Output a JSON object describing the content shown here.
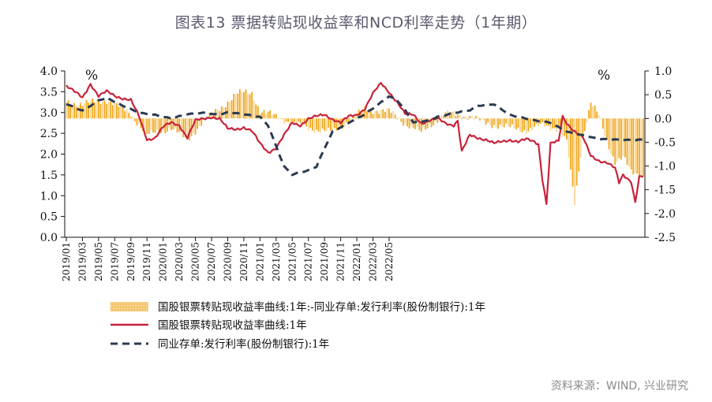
{
  "title": "图表13 票据转贴现收益率和NCD利率走势（1年期）",
  "source": "资料来源：WIND, 兴业研究",
  "colors": {
    "bar": "#F0A71E",
    "bar_light": "#F7D79A",
    "line": "#C8223A",
    "dash": "#2C3A52"
  },
  "chart_data": {
    "type": "line",
    "x_ticks": [
      "2019/01",
      "2019/03",
      "2019/05",
      "2019/07",
      "2019/09",
      "2019/11",
      "2020/01",
      "2020/03",
      "2020/05",
      "2020/07",
      "2020/09",
      "2020/11",
      "2021/01",
      "2021/03",
      "2021/05",
      "2021/07",
      "2021/09",
      "2021/11",
      "2022/01",
      "2022/03",
      "2022/05"
    ],
    "y_left": {
      "unit": "%",
      "ticks": [
        "4.0",
        "3.5",
        "3.0",
        "2.5",
        "2.0",
        "1.5",
        "1.0",
        "0.5",
        "0.0"
      ],
      "ylim": [
        0,
        4
      ]
    },
    "y_right": {
      "unit": "%",
      "ticks": [
        "1.0",
        "0.5",
        "0.0",
        "-0.5",
        "-1.0",
        "-1.5",
        "-2.0",
        "-2.5"
      ],
      "ylim": [
        -2.5,
        1.0
      ]
    },
    "series": [
      {
        "name": "国股银票转贴现收益率曲线:1年:-同业存单:发行利率(股份制银行):1年",
        "type": "bar",
        "axis": "right",
        "keyframes": [
          [
            0,
            0.35
          ],
          [
            2,
            0.3
          ],
          [
            5,
            0.4
          ],
          [
            8,
            0.1
          ],
          [
            10,
            -0.35
          ],
          [
            11,
            -0.3
          ],
          [
            13,
            -0.2
          ],
          [
            15,
            -0.45
          ],
          [
            17,
            -0.05
          ],
          [
            20,
            0.35
          ],
          [
            21,
            0.5
          ],
          [
            22,
            0.55
          ],
          [
            23,
            0.55
          ],
          [
            24,
            0.15
          ],
          [
            26,
            0.05
          ],
          [
            28,
            -0.1
          ],
          [
            30,
            -0.2
          ],
          [
            33,
            -0.3
          ],
          [
            35,
            -0.05
          ],
          [
            37,
            0.2
          ],
          [
            40,
            0.15
          ],
          [
            42,
            -0.1
          ],
          [
            44,
            -0.3
          ],
          [
            45,
            -0.15
          ],
          [
            47,
            0.1
          ],
          [
            50,
            0.05
          ],
          [
            52,
            -0.1
          ],
          [
            55,
            -0.2
          ],
          [
            57,
            -0.25
          ],
          [
            59,
            -0.15
          ],
          [
            61,
            -0.2
          ],
          [
            62,
            -0.5
          ],
          [
            63,
            -1.8
          ],
          [
            64,
            -0.4
          ],
          [
            65,
            0.35
          ],
          [
            66,
            0.05
          ],
          [
            67,
            -0.5
          ],
          [
            68,
            -0.9
          ],
          [
            69,
            -0.8
          ],
          [
            70,
            -1.15
          ],
          [
            71,
            -1.2
          ]
        ]
      },
      {
        "name": "国股银票转贴现收益率曲线:1年",
        "type": "line",
        "axis": "left",
        "keyframes": [
          [
            0,
            3.65
          ],
          [
            1,
            3.5
          ],
          [
            2,
            3.35
          ],
          [
            3,
            3.7
          ],
          [
            4,
            3.4
          ],
          [
            5,
            3.5
          ],
          [
            6,
            3.4
          ],
          [
            7,
            3.35
          ],
          [
            8,
            3.3
          ],
          [
            9,
            2.9
          ],
          [
            10,
            2.35
          ],
          [
            11,
            2.4
          ],
          [
            12,
            2.65
          ],
          [
            13,
            2.75
          ],
          [
            14,
            2.7
          ],
          [
            15,
            2.4
          ],
          [
            16,
            2.8
          ],
          [
            17,
            2.85
          ],
          [
            18,
            2.9
          ],
          [
            19,
            2.85
          ],
          [
            20,
            2.6
          ],
          [
            21,
            2.6
          ],
          [
            22,
            2.65
          ],
          [
            23,
            2.55
          ],
          [
            24,
            2.25
          ],
          [
            25,
            2.05
          ],
          [
            26,
            2.15
          ],
          [
            27,
            2.45
          ],
          [
            28,
            2.75
          ],
          [
            29,
            2.7
          ],
          [
            30,
            2.85
          ],
          [
            31,
            2.9
          ],
          [
            32,
            2.95
          ],
          [
            33,
            2.85
          ],
          [
            34,
            2.75
          ],
          [
            35,
            2.9
          ],
          [
            36,
            2.95
          ],
          [
            37,
            3.1
          ],
          [
            38,
            3.45
          ],
          [
            39,
            3.7
          ],
          [
            40,
            3.5
          ],
          [
            41,
            3.25
          ],
          [
            42,
            2.95
          ],
          [
            43,
            2.95
          ],
          [
            44,
            2.75
          ],
          [
            45,
            2.8
          ],
          [
            46,
            2.85
          ],
          [
            47,
            2.75
          ],
          [
            48,
            2.7
          ],
          [
            48.5,
            2.8
          ],
          [
            49,
            2.05
          ],
          [
            50,
            2.45
          ],
          [
            51,
            2.4
          ],
          [
            52,
            2.35
          ],
          [
            53,
            2.25
          ],
          [
            54,
            2.3
          ],
          [
            55,
            2.35
          ],
          [
            56,
            2.3
          ],
          [
            57,
            2.35
          ],
          [
            58,
            2.3
          ],
          [
            58.5,
            2.25
          ],
          [
            59,
            1.4
          ],
          [
            59.5,
            0.8
          ],
          [
            60,
            2.25
          ],
          [
            61,
            2.3
          ],
          [
            61.5,
            2.9
          ],
          [
            62,
            2.75
          ],
          [
            63,
            2.55
          ],
          [
            64,
            2.4
          ],
          [
            65,
            1.95
          ],
          [
            66,
            1.85
          ],
          [
            67,
            1.8
          ],
          [
            68,
            1.65
          ],
          [
            68.5,
            1.3
          ],
          [
            69,
            1.5
          ],
          [
            70,
            1.35
          ],
          [
            70.5,
            0.85
          ],
          [
            71,
            1.45
          ]
        ]
      },
      {
        "name": "同业存单:发行利率(股份制银行):1年",
        "type": "line",
        "axis": "left",
        "dashed": true,
        "keyframes": [
          [
            0,
            3.2
          ],
          [
            2,
            3.05
          ],
          [
            4,
            3.3
          ],
          [
            5,
            3.35
          ],
          [
            7,
            3.15
          ],
          [
            9,
            3.0
          ],
          [
            11,
            2.95
          ],
          [
            13,
            2.85
          ],
          [
            15,
            2.95
          ],
          [
            17,
            3.0
          ],
          [
            19,
            2.95
          ],
          [
            20,
            3.0
          ],
          [
            22,
            2.95
          ],
          [
            24,
            2.9
          ],
          [
            25,
            2.7
          ],
          [
            26,
            2.2
          ],
          [
            27,
            1.7
          ],
          [
            28,
            1.5
          ],
          [
            30,
            1.6
          ],
          [
            31,
            1.7
          ],
          [
            32,
            2.15
          ],
          [
            33,
            2.55
          ],
          [
            35,
            2.75
          ],
          [
            37,
            2.95
          ],
          [
            38,
            3.1
          ],
          [
            39,
            3.25
          ],
          [
            40,
            3.4
          ],
          [
            41,
            3.3
          ],
          [
            42,
            3.05
          ],
          [
            43,
            2.75
          ],
          [
            45,
            2.8
          ],
          [
            46,
            2.9
          ],
          [
            48,
            3.0
          ],
          [
            50,
            3.05
          ],
          [
            51,
            3.15
          ],
          [
            53,
            3.2
          ],
          [
            55,
            2.95
          ],
          [
            57,
            2.85
          ],
          [
            58,
            2.8
          ],
          [
            60,
            2.75
          ],
          [
            62,
            2.55
          ],
          [
            64,
            2.45
          ],
          [
            66,
            2.35
          ],
          [
            68,
            2.35
          ],
          [
            70,
            2.35
          ],
          [
            71,
            2.35
          ]
        ]
      }
    ]
  }
}
